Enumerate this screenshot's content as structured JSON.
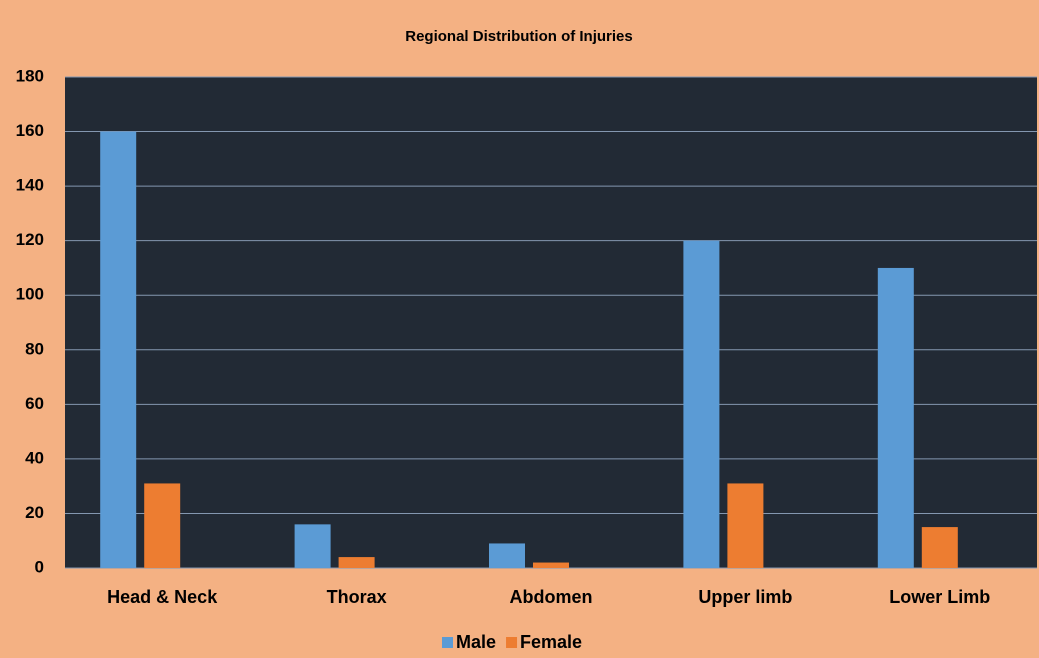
{
  "chart_data": {
    "type": "bar",
    "title": "Regional Distribution of Injuries",
    "categories": [
      "Head & Neck",
      "Thorax",
      "Abdomen",
      "Upper limb",
      "Lower Limb"
    ],
    "series": [
      {
        "name": "Male",
        "color": "#5b9bd5",
        "values": [
          160,
          16,
          9,
          120,
          110
        ]
      },
      {
        "name": "Female",
        "color": "#ed7d31",
        "values": [
          31,
          4,
          2,
          31,
          15
        ]
      }
    ],
    "ylim": [
      0,
      180
    ],
    "yticks": [
      0,
      20,
      40,
      60,
      80,
      100,
      120,
      140,
      160,
      180
    ],
    "grid": true,
    "legend": "bottom"
  }
}
